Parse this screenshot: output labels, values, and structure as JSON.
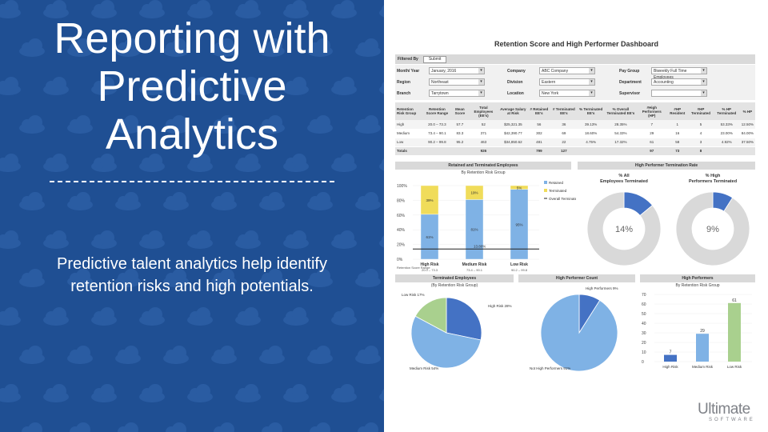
{
  "slide": {
    "title_lines": [
      "Reporting with",
      "Predictive",
      "Analytics"
    ],
    "subtitle": "Predictive talent analytics help identify retention risks and high potentials."
  },
  "dashboard": {
    "title": "Retention Score and High Performer Dashboard",
    "filtered_by_label": "Filtered By",
    "submit_label": "Submit",
    "filters": [
      {
        "label": "Month/ Year",
        "value": "January, 2016"
      },
      {
        "label": "Company",
        "value": "ABC Company"
      },
      {
        "label": "Pay Group",
        "value": "Biweekly Full Time Employees"
      },
      {
        "label": "Region",
        "value": "Northeast"
      },
      {
        "label": "Division",
        "value": "Eastern"
      },
      {
        "label": "Department",
        "value": "Accounting"
      },
      {
        "label": "Branch",
        "value": "Tarrytown"
      },
      {
        "label": "Location",
        "value": "New York"
      },
      {
        "label": "Supervisor",
        "value": ""
      }
    ],
    "table": {
      "headers": [
        "Retention Risk Group",
        "Retention Score Range",
        "Mean Score",
        "Total Employees (EE's)",
        "Average Salary at Risk",
        "# Retained EE's",
        "# Terminated EE's",
        "% Terminated EE's",
        "% Overall Terminated EE's",
        "#High Performers (HP)",
        "#HP Resident",
        "#HP Terminated",
        "% HP Terminated",
        "% HP"
      ],
      "rows": [
        [
          "High",
          "20.0 – 73.3",
          "57.7",
          "52",
          "$25,321.35",
          "56",
          "36",
          "39.13%",
          "28.35%",
          "7",
          "1",
          "5",
          "53.33%",
          "12.50%"
        ],
        [
          "Medium",
          "73.4 – 90.1",
          "83.3",
          "371",
          "$42,390.77",
          "302",
          "69",
          "18.60%",
          "54.33%",
          "29",
          "16",
          "4",
          "23.00%",
          "84.00%"
        ],
        [
          "Low",
          "90.2 – 99.8",
          "95.2",
          "463",
          "$34,850.62",
          "481",
          "22",
          "4.75%",
          "17.32%",
          "61",
          "58",
          "3",
          "4.92%",
          "37.50%"
        ],
        [
          "Totals",
          "",
          "",
          "926",
          "",
          "799",
          "127",
          "",
          "",
          "97",
          "73",
          "8",
          "",
          ""
        ]
      ]
    },
    "panels": {
      "retained_terminated": {
        "title": "Retained and Terminated Employees",
        "subtitle": "By Retention Risk Group"
      },
      "hp_termination_rate": {
        "title": "High Performer Termination Rate"
      },
      "terminated_employees": {
        "title": "Terminated Employees",
        "subtitle": "(By Retention Risk Group)"
      },
      "hp_count": {
        "title": "High Performer Count"
      },
      "high_performers": {
        "title": "High Performers",
        "subtitle": "By Retention Risk Group"
      }
    },
    "logo": {
      "word": "Ultimate",
      "sub": "SOFTWARE"
    }
  },
  "chart_data": [
    {
      "type": "bar",
      "title": "Retained and Terminated Employees",
      "subtitle": "By Retention Risk Group",
      "categories": [
        "High Risk",
        "Medium Risk",
        "Low Risk"
      ],
      "xlabel": "Retention Score Range",
      "category_ranges": [
        "20.0 – 73.3",
        "73.4 – 90.1",
        "90.2 – 99.8"
      ],
      "series": [
        {
          "name": "Retained",
          "values": [
            61,
            81,
            95
          ],
          "color": "#7fb2e5"
        },
        {
          "name": "Terminated",
          "values": [
            39,
            19,
            5
          ],
          "color": "#f0dc5a"
        }
      ],
      "reference_line": {
        "name": "Overall Terminated",
        "value": 13.8,
        "label": "13.80%"
      },
      "bar_labels": [
        [
          "61%",
          "39%"
        ],
        [
          "81%",
          "19%"
        ],
        [
          "95%",
          "5%"
        ]
      ],
      "yticks": [
        "100%",
        "80%",
        "60%",
        "40%",
        "20%",
        "0%"
      ],
      "ylim": [
        0,
        100
      ]
    },
    {
      "type": "pie",
      "title": "% All Employees Terminated",
      "values": [
        14,
        86
      ],
      "labels": [
        "Terminated",
        "Retained"
      ],
      "center_label": "14%",
      "colors": [
        "#4472c4",
        "#d9d9d9"
      ]
    },
    {
      "type": "pie",
      "title": "% High Performers Terminated",
      "values": [
        9,
        91
      ],
      "labels": [
        "Terminated",
        "Retained"
      ],
      "center_label": "9%",
      "colors": [
        "#4472c4",
        "#d9d9d9"
      ]
    },
    {
      "type": "pie",
      "title": "Terminated Employees",
      "subtitle": "(By Retention Risk Group)",
      "values": [
        28,
        54,
        17
      ],
      "labels": [
        "High Risk 28%",
        "Medium Risk 54%",
        "Low Risk 17%"
      ],
      "colors": [
        "#4472c4",
        "#7fb2e5",
        "#a9d08e"
      ]
    },
    {
      "type": "pie",
      "title": "High Performer Count",
      "values": [
        9,
        91
      ],
      "labels": [
        "High Performers 9%",
        "Not High Performers 91%"
      ],
      "colors": [
        "#4472c4",
        "#7fb2e5"
      ]
    },
    {
      "type": "bar",
      "title": "High Performers",
      "subtitle": "By Retention Risk Group",
      "categories": [
        "High Risk",
        "Medium Risk",
        "Low Risk"
      ],
      "values": [
        7,
        29,
        61
      ],
      "colors": [
        "#4472c4",
        "#7fb2e5",
        "#a9d08e"
      ],
      "yticks": [
        "70",
        "60",
        "50",
        "40",
        "30",
        "20",
        "10",
        "0"
      ],
      "ylim": [
        0,
        70
      ]
    }
  ]
}
